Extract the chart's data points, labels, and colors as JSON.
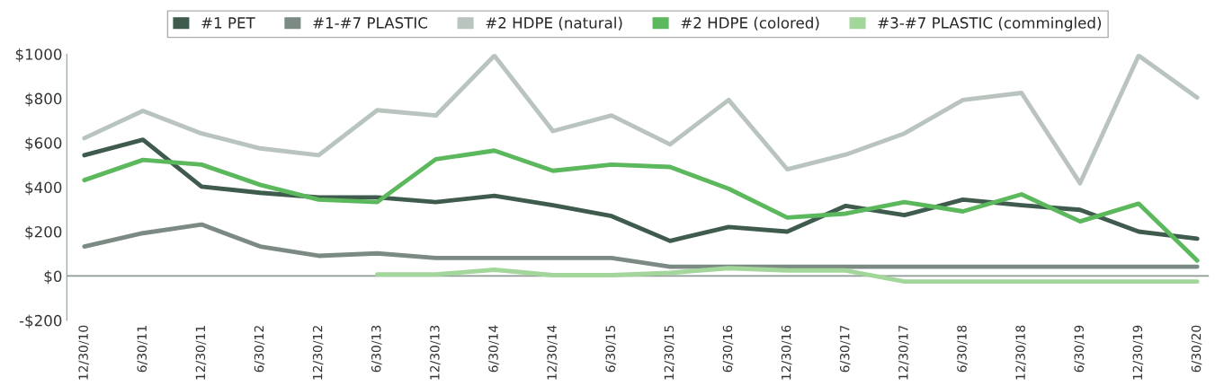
{
  "chart_data": {
    "type": "line",
    "categories": [
      "12/30/10",
      "6/30/11",
      "12/30/11",
      "6/30/12",
      "12/30/12",
      "6/30/13",
      "12/30/13",
      "6/30/14",
      "12/30/14",
      "6/30/15",
      "12/30/15",
      "6/30/16",
      "12/30/16",
      "6/30/17",
      "12/30/17",
      "6/30/18",
      "12/30/18",
      "6/30/19",
      "12/30/19",
      "6/30/20"
    ],
    "series": [
      {
        "name": "#1 PET",
        "color": "#3f5b4e",
        "values": [
          544,
          614,
          403,
          375,
          354,
          354,
          333,
          361,
          319,
          270,
          158,
          221,
          200,
          316,
          274,
          344,
          319,
          298,
          200,
          168
        ]
      },
      {
        "name": "#1-#7 PLASTIC",
        "color": "#7b8b83",
        "values": [
          133,
          193,
          232,
          133,
          91,
          102,
          81,
          81,
          81,
          81,
          42,
          42,
          42,
          42,
          42,
          42,
          42,
          42,
          42,
          42
        ]
      },
      {
        "name": "#2 HDPE (natural)",
        "color": "#b9c4be",
        "values": [
          621,
          744,
          642,
          575,
          544,
          747,
          723,
          993,
          653,
          723,
          593,
          793,
          481,
          547,
          642,
          793,
          825,
          418,
          993,
          804
        ]
      },
      {
        "name": "#2 HDPE (colored)",
        "color": "#5cb85c",
        "values": [
          432,
          523,
          502,
          411,
          344,
          333,
          526,
          565,
          474,
          502,
          491,
          393,
          263,
          281,
          333,
          291,
          368,
          246,
          326,
          70
        ]
      },
      {
        "name": "#3-#7 PLASTIC (commingled)",
        "color": "#a3d69a",
        "values": [
          null,
          null,
          null,
          null,
          null,
          7,
          7,
          28,
          4,
          4,
          14,
          35,
          25,
          25,
          -25,
          -25,
          -25,
          -25,
          -25,
          -25
        ]
      }
    ],
    "ylim": [
      -200,
      1000
    ],
    "yticks": [
      {
        "value": -200,
        "label": "-$200"
      },
      {
        "value": 0,
        "label": "$0"
      },
      {
        "value": 200,
        "label": "$200"
      },
      {
        "value": 400,
        "label": "$400"
      },
      {
        "value": 600,
        "label": "$600"
      },
      {
        "value": 800,
        "label": "$800"
      },
      {
        "value": 1000,
        "label": "$1000"
      }
    ],
    "ref_lines": [
      {
        "axis": "y",
        "value": 0,
        "label": null,
        "color": "#8c9a93"
      }
    ],
    "grid": false,
    "legend": "top",
    "marker": "none",
    "line_style": "solid"
  }
}
